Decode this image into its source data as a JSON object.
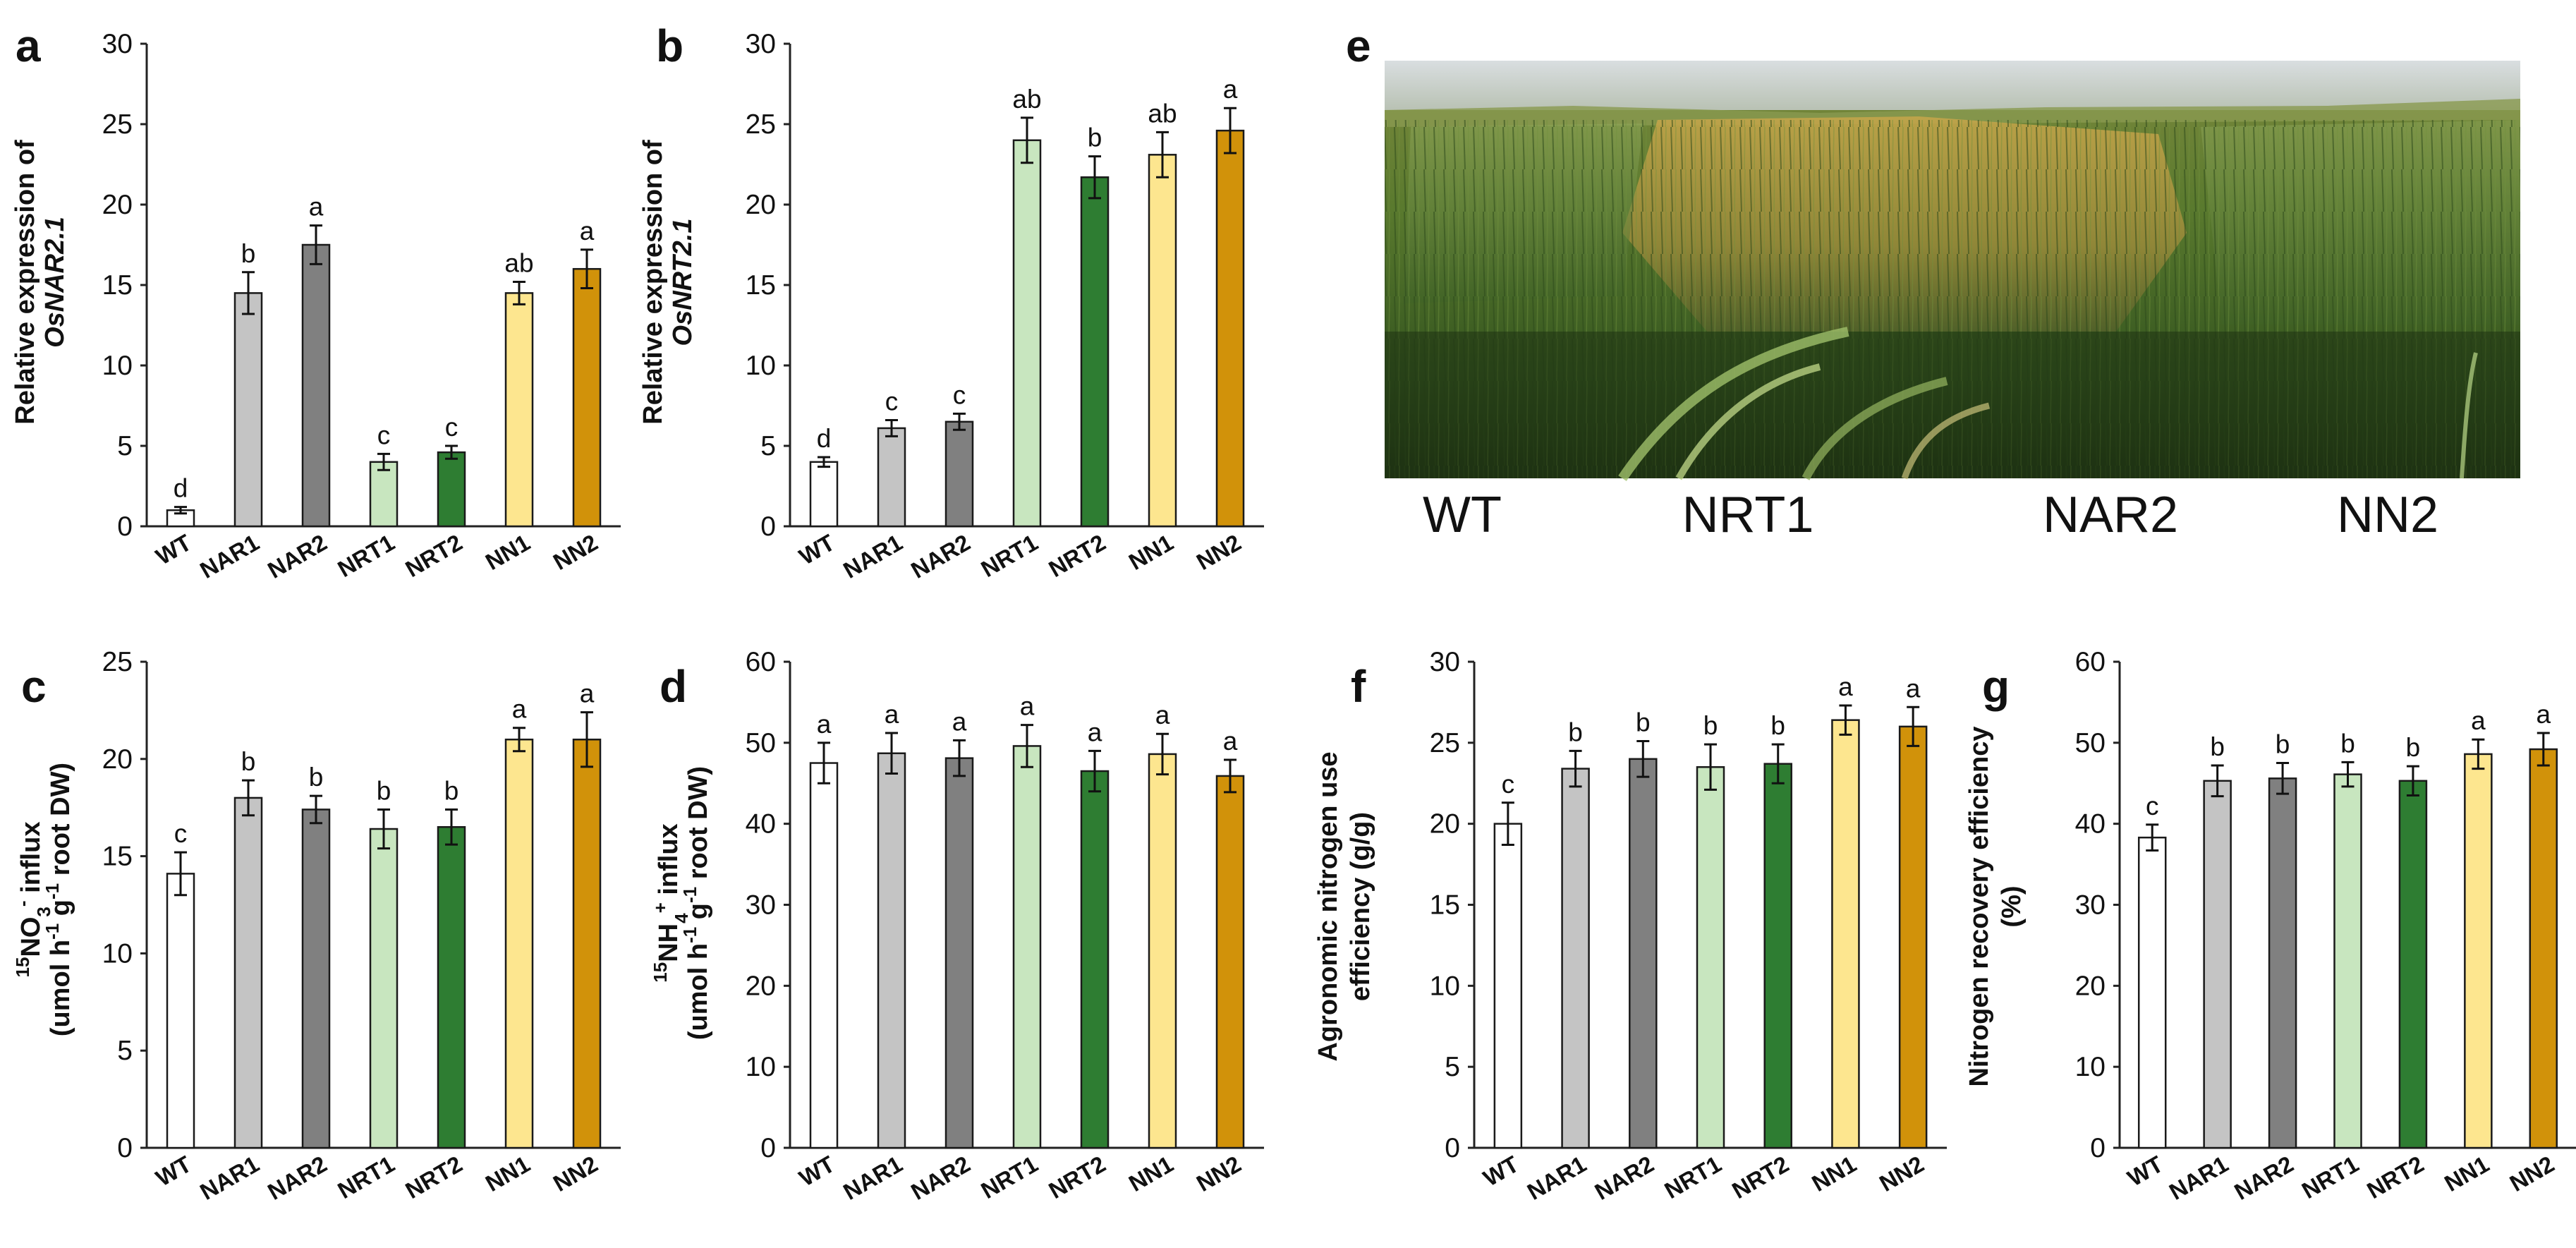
{
  "chart_data": [
    {
      "panel": "a",
      "type": "bar",
      "categories": [
        "WT",
        "NAR1",
        "NAR2",
        "NRT1",
        "NRT2",
        "NN1",
        "NN2"
      ],
      "values": [
        1.0,
        14.5,
        17.5,
        4.0,
        4.6,
        14.5,
        16.0
      ],
      "errors": [
        0.2,
        1.3,
        1.2,
        0.5,
        0.4,
        0.7,
        1.2
      ],
      "significance": [
        "d",
        "b",
        "a",
        "c",
        "c",
        "ab",
        "a"
      ],
      "ylabel_lines": [
        "Relative expression of",
        "OsNAR2.1"
      ],
      "ylim": [
        0,
        30
      ],
      "yticks": [
        0,
        5,
        10,
        15,
        20,
        25,
        30
      ],
      "colors": [
        "#ffffff",
        "#c4c4c4",
        "#808080",
        "#c8e6bf",
        "#2e7d32",
        "#fde68f",
        "#d1920a"
      ]
    },
    {
      "panel": "b",
      "type": "bar",
      "categories": [
        "WT",
        "NAR1",
        "NAR2",
        "NRT1",
        "NRT2",
        "NN1",
        "NN2"
      ],
      "values": [
        4.0,
        6.1,
        6.5,
        24.0,
        21.7,
        23.1,
        24.6
      ],
      "errors": [
        0.3,
        0.5,
        0.5,
        1.4,
        1.3,
        1.4,
        1.4
      ],
      "significance": [
        "d",
        "c",
        "c",
        "ab",
        "b",
        "ab",
        "a"
      ],
      "ylabel_lines": [
        "Relative expression of",
        "OsNRT2.1"
      ],
      "ylim": [
        0,
        30
      ],
      "yticks": [
        0,
        5,
        10,
        15,
        20,
        25,
        30
      ],
      "colors": [
        "#ffffff",
        "#c4c4c4",
        "#808080",
        "#c8e6bf",
        "#2e7d32",
        "#fde68f",
        "#d1920a"
      ]
    },
    {
      "panel": "c",
      "type": "bar",
      "categories": [
        "WT",
        "NAR1",
        "NAR2",
        "NRT1",
        "NRT2",
        "NN1",
        "NN2"
      ],
      "values": [
        14.1,
        18.0,
        17.4,
        16.4,
        16.5,
        21.0,
        21.0
      ],
      "errors": [
        1.1,
        0.9,
        0.7,
        1.0,
        0.9,
        0.6,
        1.4
      ],
      "significance": [
        "c",
        "b",
        "b",
        "b",
        "b",
        "a",
        "a"
      ],
      "ylabel_lines": [
        "15NO3- influx",
        "(umol h-1 g-1 root DW)"
      ],
      "ylim": [
        0,
        25
      ],
      "yticks": [
        0,
        5,
        10,
        15,
        20,
        25
      ],
      "colors": [
        "#ffffff",
        "#c4c4c4",
        "#808080",
        "#c8e6bf",
        "#2e7d32",
        "#fde68f",
        "#d1920a"
      ]
    },
    {
      "panel": "d",
      "type": "bar",
      "categories": [
        "WT",
        "NAR1",
        "NAR2",
        "NRT1",
        "NRT2",
        "NN1",
        "NN2"
      ],
      "values": [
        47.5,
        48.7,
        48.1,
        49.6,
        46.5,
        48.6,
        45.9
      ],
      "errors": [
        2.5,
        2.5,
        2.2,
        2.6,
        2.5,
        2.5,
        2.0
      ],
      "significance": [
        "a",
        "a",
        "a",
        "a",
        "a",
        "a",
        "a"
      ],
      "ylabel_lines": [
        "15NH4+ influx",
        "(umol h-1 g-1 root DW)"
      ],
      "ylim": [
        0,
        60
      ],
      "yticks": [
        0,
        10,
        20,
        30,
        40,
        50,
        60
      ],
      "colors": [
        "#ffffff",
        "#c4c4c4",
        "#808080",
        "#c8e6bf",
        "#2e7d32",
        "#fde68f",
        "#d1920a"
      ]
    },
    {
      "panel": "f",
      "type": "bar",
      "categories": [
        "WT",
        "NAR1",
        "NAR2",
        "NRT1",
        "NRT2",
        "NN1",
        "NN2"
      ],
      "values": [
        20.0,
        23.4,
        24.0,
        23.5,
        23.7,
        26.4,
        26.0
      ],
      "errors": [
        1.3,
        1.1,
        1.1,
        1.4,
        1.2,
        0.9,
        1.2
      ],
      "significance": [
        "c",
        "b",
        "b",
        "b",
        "b",
        "a",
        "a"
      ],
      "ylabel_lines": [
        "Agronomic nitrogen use",
        "efficiency (g/g)"
      ],
      "ylim": [
        0,
        30
      ],
      "yticks": [
        0,
        5,
        10,
        15,
        20,
        25,
        30
      ],
      "colors": [
        "#ffffff",
        "#c4c4c4",
        "#808080",
        "#c8e6bf",
        "#2e7d32",
        "#fde68f",
        "#d1920a"
      ]
    },
    {
      "panel": "g",
      "type": "bar",
      "categories": [
        "WT",
        "NAR1",
        "NAR2",
        "NRT1",
        "NRT2",
        "NN1",
        "NN2"
      ],
      "values": [
        38.3,
        45.3,
        45.6,
        46.1,
        45.3,
        48.6,
        49.2
      ],
      "errors": [
        1.6,
        1.9,
        1.9,
        1.5,
        1.8,
        1.8,
        2.0
      ],
      "significance": [
        "c",
        "b",
        "b",
        "b",
        "b",
        "a",
        "a"
      ],
      "ylabel_lines": [
        "Nitrogen recovery efficiency",
        "(%)"
      ],
      "ylim": [
        0,
        60
      ],
      "yticks": [
        0,
        10,
        20,
        30,
        40,
        50,
        60
      ],
      "colors": [
        "#ffffff",
        "#c4c4c4",
        "#808080",
        "#c8e6bf",
        "#2e7d32",
        "#fde68f",
        "#d1920a"
      ]
    }
  ],
  "photo": {
    "panel": "e",
    "labels": [
      "WT",
      "NRT1",
      "NAR2",
      "NN2"
    ]
  }
}
